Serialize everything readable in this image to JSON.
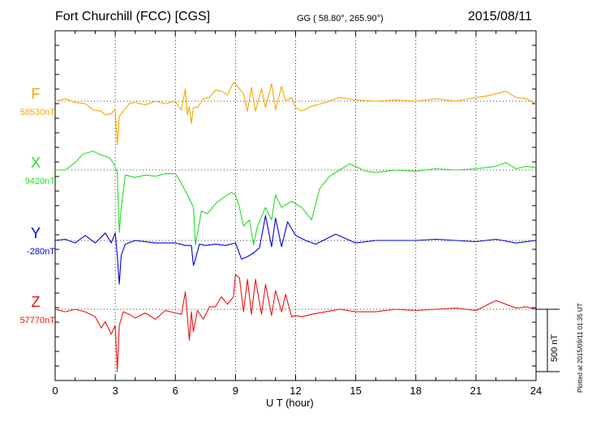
{
  "header": {
    "station": "Fort Churchill (FCC)  [CGS]",
    "coords": "GG ( 58.80°, 265.90°)",
    "date": "2015/08/11"
  },
  "x_axis_label": "U T (hour)",
  "plotted_note": "Plotted at 2015/09/11 01:35 UT",
  "scale_label": "500 nT",
  "chart_data": {
    "type": "line",
    "xlabel": "U T (hour)",
    "xlim": [
      0,
      24
    ],
    "xticks": [
      0,
      3,
      6,
      9,
      12,
      15,
      18,
      21,
      24
    ],
    "scale_bar_nT": 500,
    "grid": true,
    "series": [
      {
        "name": "F",
        "baseline_label": "58530nT",
        "color": "#f5a500",
        "x": [
          0,
          0.5,
          1,
          1.5,
          1.9,
          2.3,
          2.5,
          2.8,
          3.0,
          3.1,
          3.2,
          3.4,
          3.7,
          4.0,
          4.5,
          5.0,
          5.5,
          6.0,
          6.3,
          6.5,
          6.6,
          6.7,
          6.8,
          6.9,
          7.1,
          7.4,
          7.7,
          8.0,
          8.3,
          8.6,
          8.9,
          9.0,
          9.2,
          9.4,
          9.6,
          9.8,
          10.0,
          10.3,
          10.5,
          10.8,
          11.0,
          11.3,
          11.5,
          11.8,
          12.0,
          12.3,
          12.8,
          13.5,
          14.2,
          15,
          16,
          17,
          18,
          19,
          20,
          21,
          21.5,
          22,
          22.5,
          23,
          23.5,
          24
        ],
        "y": [
          0,
          20,
          -10,
          -20,
          -70,
          -80,
          -110,
          -100,
          -60,
          -350,
          -120,
          -80,
          -20,
          -10,
          -30,
          0,
          -20,
          0,
          -70,
          100,
          -110,
          -40,
          -180,
          -50,
          -50,
          20,
          30,
          90,
          80,
          50,
          150,
          140,
          100,
          60,
          -80,
          110,
          -80,
          100,
          -50,
          140,
          -70,
          120,
          0,
          30,
          -50,
          -80,
          -40,
          -10,
          30,
          10,
          0,
          10,
          0,
          20,
          0,
          30,
          40,
          60,
          80,
          30,
          20,
          -20
        ]
      },
      {
        "name": "X",
        "baseline_label": "9420nT",
        "color": "#22dd22",
        "x": [
          0,
          0.5,
          1,
          1.4,
          1.9,
          2.3,
          2.7,
          2.9,
          3.1,
          3.2,
          3.3,
          3.5,
          4.0,
          4.5,
          5.0,
          5.5,
          6.0,
          6.2,
          6.6,
          6.9,
          7.0,
          7.3,
          7.6,
          8.0,
          8.4,
          8.8,
          9.0,
          9.2,
          9.4,
          9.7,
          9.9,
          10.1,
          10.5,
          10.8,
          11.0,
          11.3,
          11.8,
          12.3,
          12.8,
          13.2,
          13.7,
          14.2,
          14.7,
          15.5,
          16,
          17,
          18,
          19,
          20,
          21,
          22,
          22.5,
          23,
          23.5,
          24
        ],
        "y": [
          0,
          0,
          60,
          130,
          150,
          120,
          100,
          60,
          -20,
          -500,
          -300,
          -40,
          -60,
          -40,
          -50,
          -30,
          -30,
          -80,
          -200,
          -300,
          -600,
          -330,
          -350,
          -270,
          -220,
          -180,
          -200,
          -300,
          -450,
          -400,
          -600,
          -450,
          -300,
          -400,
          -200,
          -300,
          -250,
          -300,
          -400,
          -150,
          -50,
          0,
          50,
          -10,
          -20,
          0,
          -10,
          10,
          0,
          10,
          30,
          60,
          10,
          30,
          20
        ]
      },
      {
        "name": "Y",
        "baseline_label": "-280nT",
        "color": "#0000dd",
        "x": [
          0,
          0.5,
          1,
          1.5,
          2.0,
          2.5,
          2.8,
          3.0,
          3.1,
          3.2,
          3.3,
          3.5,
          4.0,
          5.0,
          6.0,
          6.5,
          6.8,
          6.9,
          7.0,
          7.2,
          7.5,
          8.0,
          8.5,
          9.0,
          9.3,
          9.6,
          9.9,
          10.2,
          10.5,
          10.8,
          11.0,
          11.3,
          11.6,
          12.0,
          12.5,
          13,
          14,
          15,
          16,
          17,
          18,
          19,
          20,
          21,
          22,
          23,
          24
        ],
        "y": [
          0,
          10,
          -20,
          40,
          -20,
          60,
          -20,
          60,
          -120,
          -350,
          -120,
          -30,
          0,
          -20,
          -20,
          -40,
          -40,
          -200,
          -150,
          -30,
          -40,
          -30,
          -40,
          -20,
          -150,
          -130,
          -100,
          -60,
          200,
          -50,
          180,
          -50,
          150,
          40,
          0,
          -30,
          50,
          -20,
          0,
          0,
          0,
          10,
          0,
          -10,
          10,
          -20,
          0
        ]
      },
      {
        "name": "Z",
        "baseline_label": "57770nT",
        "color": "#ee1111",
        "x": [
          0,
          0.5,
          1,
          1.5,
          2.0,
          2.3,
          2.5,
          2.8,
          3.0,
          3.1,
          3.2,
          3.4,
          3.7,
          4.0,
          4.5,
          5.0,
          5.5,
          6.0,
          6.3,
          6.5,
          6.7,
          6.8,
          6.9,
          7.1,
          7.4,
          7.7,
          8.0,
          8.3,
          8.6,
          8.9,
          9.0,
          9.2,
          9.4,
          9.6,
          9.8,
          10.0,
          10.3,
          10.5,
          10.8,
          11.0,
          11.3,
          11.5,
          11.8,
          12.0,
          12.3,
          12.8,
          13.5,
          14.2,
          15,
          16,
          17,
          18,
          19,
          20,
          21,
          21.5,
          22,
          22.5,
          23,
          23.5,
          24
        ],
        "y": [
          0,
          -20,
          0,
          -20,
          -60,
          -150,
          -100,
          -200,
          -130,
          -500,
          -130,
          -20,
          -40,
          -70,
          -30,
          -80,
          -10,
          -30,
          -40,
          140,
          -250,
          -20,
          -180,
          -10,
          -80,
          20,
          20,
          100,
          40,
          100,
          280,
          250,
          -20,
          240,
          -40,
          240,
          -40,
          200,
          -50,
          150,
          -20,
          120,
          -60,
          -50,
          -60,
          -40,
          -20,
          0,
          -20,
          -20,
          0,
          -10,
          0,
          10,
          -10,
          30,
          70,
          40,
          10,
          20,
          0
        ]
      }
    ]
  }
}
